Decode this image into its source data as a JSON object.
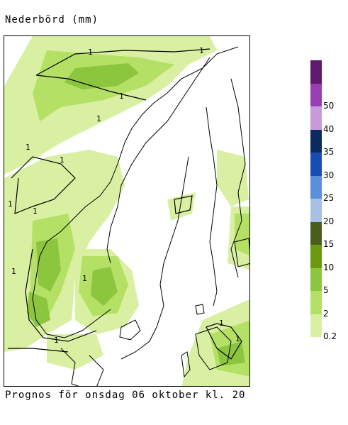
{
  "title": "Nederbörd (mm)",
  "caption": "Prognos för onsdag 06 oktober kl. 20",
  "legend": {
    "levels": [
      {
        "label": "0.2",
        "color": "#d9f0a3"
      },
      {
        "label": "2",
        "color": "#b5e066"
      },
      {
        "label": "5",
        "color": "#8cc63f"
      },
      {
        "label": "10",
        "color": "#6a9a12"
      },
      {
        "label": "15",
        "color": "#4a5e1a"
      },
      {
        "label": "20",
        "color": "#a6c0e6"
      },
      {
        "label": "25",
        "color": "#5b8fd9"
      },
      {
        "label": "30",
        "color": "#1a4db3"
      },
      {
        "label": "35",
        "color": "#0d2a5e"
      },
      {
        "label": "40",
        "color": "#c89ad9"
      },
      {
        "label": "50",
        "color": "#9a3fb3"
      },
      {
        "label": "",
        "color": "#5e1a6b"
      }
    ]
  },
  "map": {
    "contour_label": "1",
    "colors": {
      "light": "#d9f0a3",
      "mid": "#b5e066",
      "dark": "#8cc63f",
      "land_outline": "#000000"
    }
  }
}
